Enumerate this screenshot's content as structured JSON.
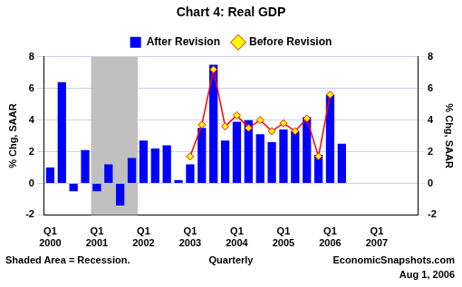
{
  "chart_data": {
    "type": "bar",
    "title": "Chart 4: Real GDP",
    "categories": [
      "Q1 2000",
      null,
      null,
      null,
      "Q1 2001",
      null,
      null,
      null,
      "Q1 2002",
      null,
      null,
      null,
      "Q1 2003",
      null,
      null,
      null,
      "Q1 2004",
      null,
      null,
      null,
      "Q1 2005",
      null,
      null,
      null,
      "Q1 2006",
      null,
      null,
      null,
      "Q1 2007",
      null,
      null,
      null
    ],
    "series": [
      {
        "name": "After Revision",
        "type": "bar",
        "color": "#0000ff",
        "values": [
          1.0,
          6.4,
          -0.5,
          2.1,
          -0.5,
          1.2,
          -1.4,
          1.6,
          2.7,
          2.2,
          2.4,
          0.2,
          1.2,
          3.5,
          7.5,
          2.7,
          3.9,
          4.0,
          3.1,
          2.6,
          3.4,
          3.3,
          4.2,
          1.8,
          5.6,
          2.5,
          null,
          null,
          null,
          null,
          null,
          null
        ]
      },
      {
        "name": "Before Revision",
        "type": "line",
        "color": "#ff0000",
        "marker": "diamond",
        "values": [
          null,
          null,
          null,
          null,
          null,
          null,
          null,
          null,
          null,
          null,
          null,
          null,
          1.7,
          3.7,
          7.2,
          3.6,
          4.3,
          3.5,
          4.0,
          3.3,
          3.8,
          3.3,
          4.1,
          1.7,
          5.6,
          null,
          null,
          null,
          null,
          null,
          null,
          null
        ]
      }
    ],
    "ylim": [
      -2,
      8
    ],
    "yticks": [
      -2,
      0,
      2,
      4,
      6,
      8
    ],
    "y2lim": [
      -2,
      8
    ],
    "y2ticks": [
      -2,
      0,
      2,
      4,
      6,
      8
    ],
    "y_label": "% Chg, SAAR",
    "y2_label": "% Chg, SAAR",
    "x_label": "Quarterly",
    "recession": {
      "from_index": 4,
      "to_index": 7,
      "color": "#c0c0c0"
    },
    "note": "Shaded Area = Recession.",
    "source": "EconomicSnapshots.com",
    "date": "Aug 1, 2006",
    "legend": "top",
    "grid": true
  }
}
